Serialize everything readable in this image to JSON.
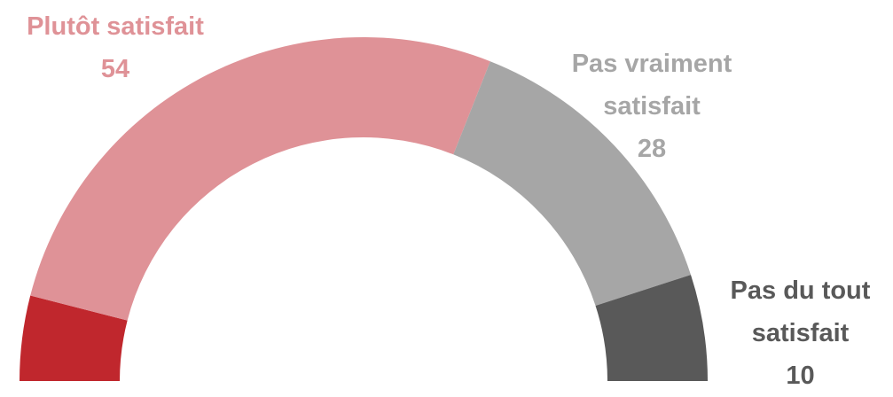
{
  "chart_data": {
    "type": "half-donut",
    "categories": [
      null,
      "Plutôt satisfait",
      "Pas vraiment satisfait",
      "Pas du tout satisfait"
    ],
    "values": [
      8,
      54,
      28,
      10
    ],
    "colors": [
      "#c0272d",
      "#df9297",
      "#a6a6a6",
      "#595959"
    ]
  }
}
